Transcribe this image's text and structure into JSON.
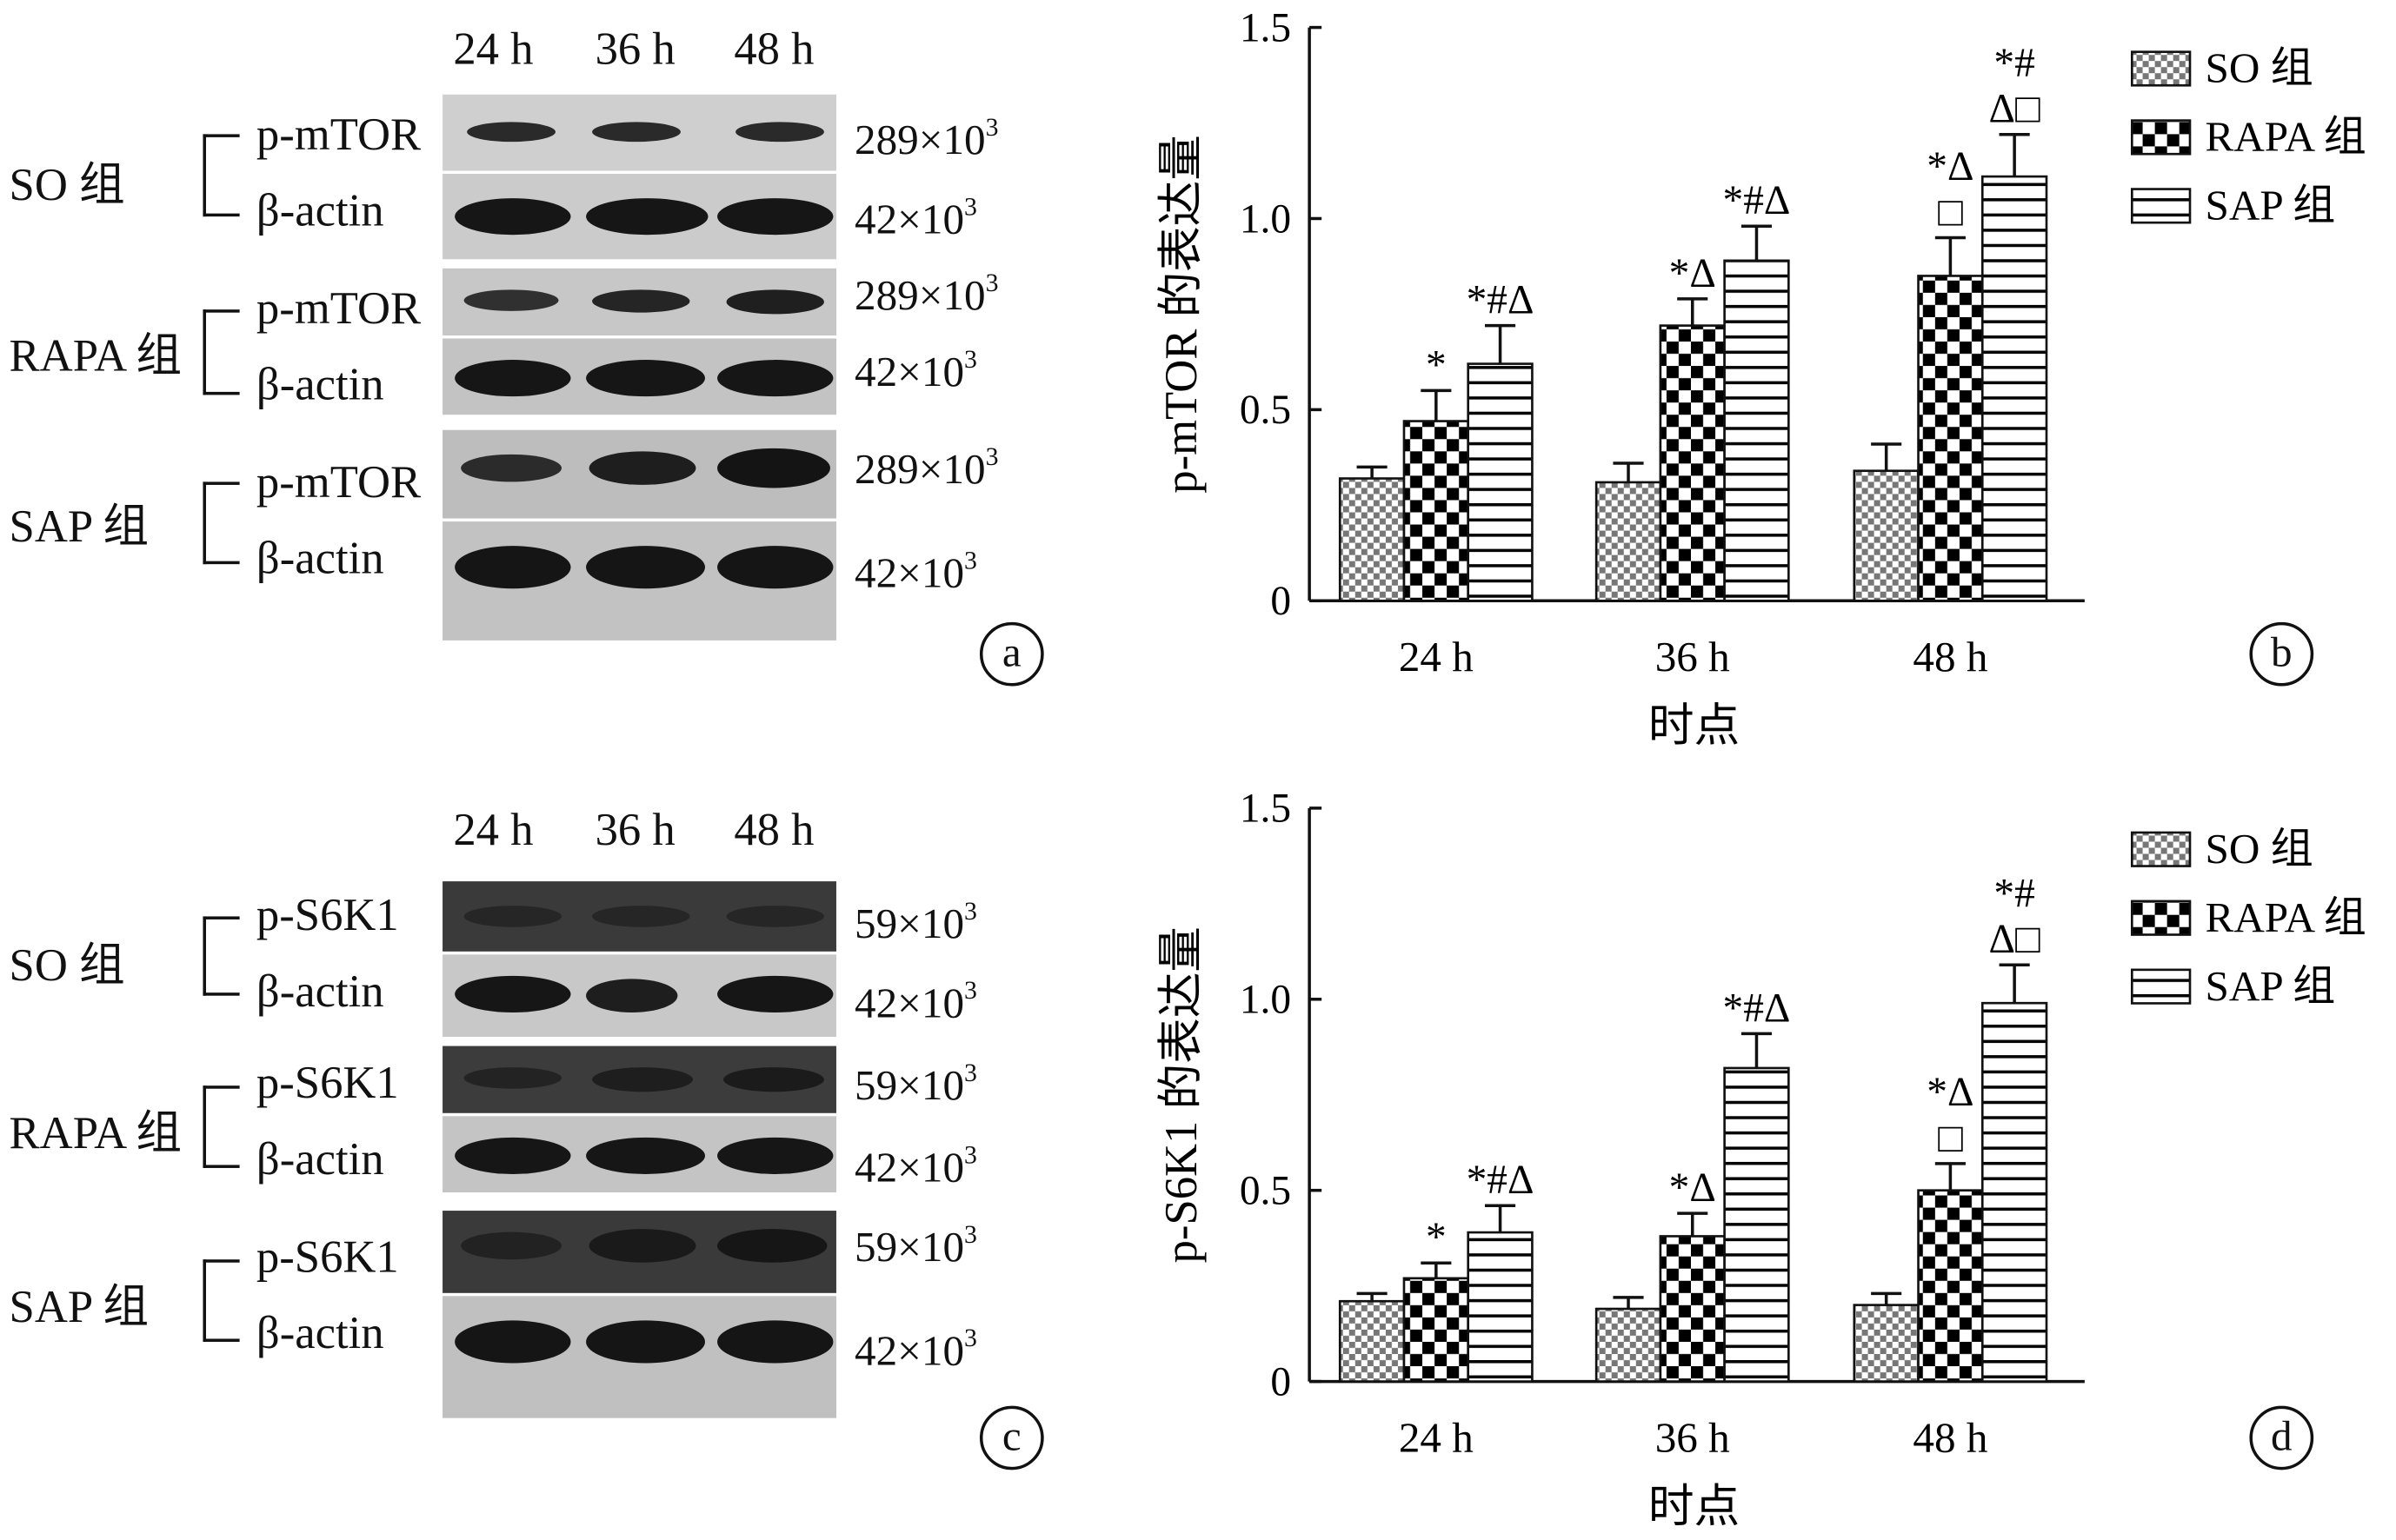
{
  "panel_labels": {
    "a": "a",
    "b": "b",
    "c": "c",
    "d": "d"
  },
  "blots": [
    {
      "id": "a",
      "lanes": [
        "24 h",
        "36 h",
        "48 h"
      ],
      "groups": [
        {
          "name": "SO 组",
          "target": "p-mTOR",
          "target_mw": "289×10",
          "actin": "β-actin",
          "actin_mw": "42×10",
          "exp": "3"
        },
        {
          "name": "RAPA 组",
          "target": "p-mTOR",
          "target_mw": "289×10",
          "actin": "β-actin",
          "actin_mw": "42×10",
          "exp": "3"
        },
        {
          "name": "SAP 组",
          "target": "p-mTOR",
          "target_mw": "289×10",
          "actin": "β-actin",
          "actin_mw": "42×10",
          "exp": "3"
        }
      ]
    },
    {
      "id": "c",
      "lanes": [
        "24 h",
        "36 h",
        "48 h"
      ],
      "groups": [
        {
          "name": "SO 组",
          "target": "p-S6K1",
          "target_mw": "59×10",
          "actin": "β-actin",
          "actin_mw": "42×10",
          "exp": "3"
        },
        {
          "name": "RAPA 组",
          "target": "p-S6K1",
          "target_mw": "59×10",
          "actin": "β-actin",
          "actin_mw": "42×10",
          "exp": "3"
        },
        {
          "name": "SAP 组",
          "target": "p-S6K1",
          "target_mw": "59×10",
          "actin": "β-actin",
          "actin_mw": "42×10",
          "exp": "3"
        }
      ]
    }
  ],
  "chart_data": [
    {
      "panel": "b",
      "type": "bar",
      "xlabel": "时点",
      "ylabel": "p-mTOR 的表达量",
      "categories": [
        "24 h",
        "36 h",
        "48 h"
      ],
      "ylim": [
        0,
        1.5
      ],
      "yticks": [
        "0",
        "0.5",
        "1.0",
        "1.5"
      ],
      "legend_position": "top-right",
      "series": [
        {
          "name": "SO 组",
          "pattern": "checker-fine",
          "values": [
            0.32,
            0.31,
            0.34
          ],
          "errors": [
            0.03,
            0.05,
            0.07
          ],
          "annotations": [
            [],
            [],
            []
          ]
        },
        {
          "name": "RAPA 组",
          "pattern": "checker-coarse",
          "values": [
            0.47,
            0.72,
            0.85
          ],
          "errors": [
            0.08,
            0.07,
            0.1
          ],
          "annotations": [
            [
              "*"
            ],
            [
              "*Δ"
            ],
            [
              "□",
              "*Δ"
            ]
          ]
        },
        {
          "name": "SAP 组",
          "pattern": "horizontal-lines",
          "values": [
            0.62,
            0.89,
            1.11
          ],
          "errors": [
            0.1,
            0.09,
            0.11
          ],
          "annotations": [
            [
              "*#Δ"
            ],
            [
              "*#Δ"
            ],
            [
              "Δ□",
              "*#"
            ]
          ]
        }
      ]
    },
    {
      "panel": "d",
      "type": "bar",
      "xlabel": "时点",
      "ylabel": "p-S6K1 的表达量",
      "categories": [
        "24 h",
        "36 h",
        "48 h"
      ],
      "ylim": [
        0,
        1.5
      ],
      "yticks": [
        "0",
        "0.5",
        "1.0",
        "1.5"
      ],
      "legend_position": "top-right",
      "series": [
        {
          "name": "SO 组",
          "pattern": "checker-fine",
          "values": [
            0.21,
            0.19,
            0.2
          ],
          "errors": [
            0.02,
            0.03,
            0.03
          ],
          "annotations": [
            [],
            [],
            []
          ]
        },
        {
          "name": "RAPA 组",
          "pattern": "checker-coarse",
          "values": [
            0.27,
            0.38,
            0.5
          ],
          "errors": [
            0.04,
            0.06,
            0.07
          ],
          "annotations": [
            [
              "*"
            ],
            [
              "*Δ"
            ],
            [
              "□",
              "*Δ"
            ]
          ]
        },
        {
          "name": "SAP 组",
          "pattern": "horizontal-lines",
          "values": [
            0.39,
            0.82,
            0.99
          ],
          "errors": [
            0.07,
            0.09,
            0.1
          ],
          "annotations": [
            [
              "*#Δ"
            ],
            [
              "*#Δ"
            ],
            [
              "Δ□",
              "*#"
            ]
          ]
        }
      ]
    }
  ]
}
